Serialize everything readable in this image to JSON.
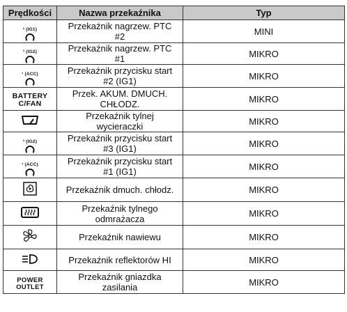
{
  "headers": {
    "speed": "Prędkości",
    "relay_name": "Nazwa przekaźnika",
    "type": "Typ"
  },
  "rows": [
    {
      "icon": "ig1-relay-icon",
      "icon_text": "² (IG1)",
      "name": "Przekaźnik nagrzew. PTC #2",
      "type": "MINI"
    },
    {
      "icon": "ig2-relay-icon",
      "icon_text": "³ (IG2)",
      "name": "Przekaźnik nagrzew. PTC #1",
      "type": "MIKRO"
    },
    {
      "icon": "acc-relay-icon",
      "icon_text": "¹ (ACC)",
      "name": "Przekaźnik przycisku start #2 (IG1)",
      "type": "MIKRO"
    },
    {
      "icon": "battery-cfan-label",
      "icon_text": "BATTERY C/FAN",
      "name": "Przek. AKUM. DMUCH. CHŁODZ.",
      "type": "MIKRO"
    },
    {
      "icon": "rear-wiper-icon",
      "icon_text": "",
      "name": "Przekaźnik tylnej wycieraczki",
      "type": "MIKRO"
    },
    {
      "icon": "ig2-relay-icon",
      "icon_text": "³ (IG2)",
      "name": "Przekaźnik przycisku start #3 (IG1)",
      "type": "MIKRO"
    },
    {
      "icon": "acc-relay-icon",
      "icon_text": "¹ (ACC)",
      "name": "Przekaźnik przycisku start #1 (IG1)",
      "type": "MIKRO"
    },
    {
      "icon": "cooling-fan-icon",
      "icon_text": "",
      "name": "Przekaźnik dmuch. chłodz.",
      "type": "MIKRO"
    },
    {
      "icon": "rear-defroster-icon",
      "icon_text": "",
      "name": "Przekaźnik tylnego odmrażacza",
      "type": "MIKRO"
    },
    {
      "icon": "blower-fan-icon",
      "icon_text": "",
      "name": "Przekaźnik nawiewu",
      "type": "MIKRO"
    },
    {
      "icon": "high-beam-icon",
      "icon_text": "",
      "name": "Przekaźnik reflektorów HI",
      "type": "MIKRO"
    },
    {
      "icon": "power-outlet-label",
      "icon_text": "POWER OUTLET",
      "name": "Przekaźnik gniazdka zasilania",
      "type": "MIKRO"
    }
  ]
}
